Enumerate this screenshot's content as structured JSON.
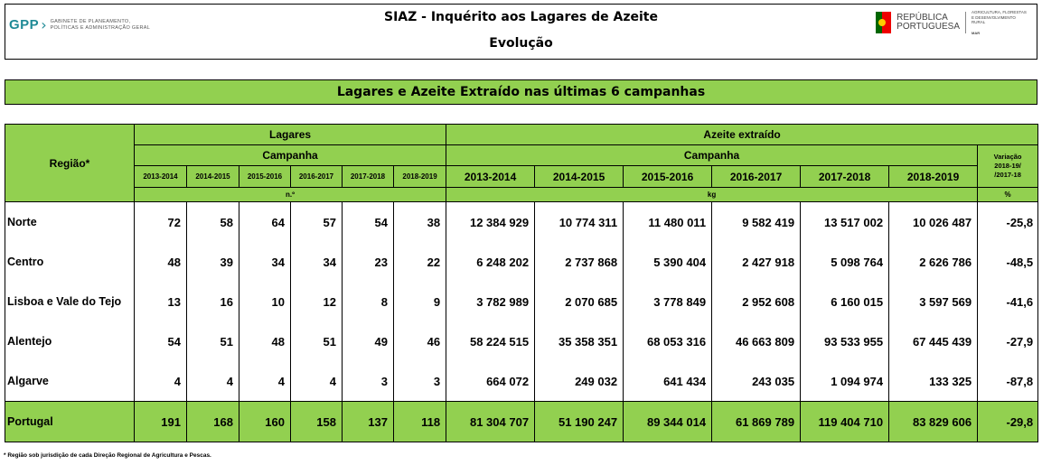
{
  "header": {
    "logo_left_mark": "GPP",
    "logo_left_text_1": "GABINETE DE PLANEAMENTO,",
    "logo_left_text_2": "POLÍTICAS E ADMINISTRAÇÃO GERAL",
    "title": "SIAZ - Inquérito aos Lagares de Azeite",
    "subtitle": "Evolução",
    "logo_right_text_1": "REPÚBLICA",
    "logo_right_text_2": "PORTUGUESA",
    "logo_right_min_1": "AGRICULTURA, FLORESTAS",
    "logo_right_min_2": "E DESENVOLVIMENTO RURAL",
    "logo_right_min_3": "MAR"
  },
  "banner": "Lagares e Azeite Extraído nas últimas 6 campanhas",
  "table": {
    "region_header": "Região*",
    "lagares_header": "Lagares",
    "azeite_header": "Azeite extraído",
    "campanha_label": "Campanha",
    "variacao_header_1": "Variação",
    "variacao_header_2": "2018-19/",
    "variacao_header_3": "/2017-18",
    "years": [
      "2013-2014",
      "2014-2015",
      "2015-2016",
      "2016-2017",
      "2017-2018",
      "2018-2019"
    ],
    "unit_lagares": "n.º",
    "unit_azeite": "kg",
    "unit_variacao": "%",
    "rows": [
      {
        "region": "Norte",
        "lagares": [
          "72",
          "58",
          "64",
          "57",
          "54",
          "38"
        ],
        "azeite": [
          "12 384 929",
          "10 774 311",
          "11 480 011",
          "9 582 419",
          "13 517 002",
          "10 026 487"
        ],
        "variacao": "-25,8"
      },
      {
        "region": "Centro",
        "lagares": [
          "48",
          "39",
          "34",
          "34",
          "23",
          "22"
        ],
        "azeite": [
          "6 248 202",
          "2 737 868",
          "5 390 404",
          "2 427 918",
          "5 098 764",
          "2 626 786"
        ],
        "variacao": "-48,5"
      },
      {
        "region": "Lisboa e Vale do Tejo",
        "lagares": [
          "13",
          "16",
          "10",
          "12",
          "8",
          "9"
        ],
        "azeite": [
          "3 782 989",
          "2 070 685",
          "3 778 849",
          "2 952 608",
          "6 160 015",
          "3 597 569"
        ],
        "variacao": "-41,6"
      },
      {
        "region": "Alentejo",
        "lagares": [
          "54",
          "51",
          "48",
          "51",
          "49",
          "46"
        ],
        "azeite": [
          "58 224 515",
          "35 358 351",
          "68 053 316",
          "46 663 809",
          "93 533 955",
          "67 445 439"
        ],
        "variacao": "-27,9"
      },
      {
        "region": "Algarve",
        "lagares": [
          "4",
          "4",
          "4",
          "4",
          "3",
          "3"
        ],
        "azeite": [
          "664 072",
          "249 032",
          "641 434",
          "243 035",
          "1 094 974",
          "133 325"
        ],
        "variacao": "-87,8"
      }
    ],
    "total": {
      "region": "Portugal",
      "lagares": [
        "191",
        "168",
        "160",
        "158",
        "137",
        "118"
      ],
      "azeite": [
        "81 304 707",
        "51 190 247",
        "89 344 014",
        "61 869 789",
        "119 404 710",
        "83 829 606"
      ],
      "variacao": "-29,8"
    }
  },
  "footnote": "* Região sob jurisdição de cada Direção Regional de Agricultura e Pescas.",
  "colors": {
    "accent_green": "#92d050",
    "gpp_teal": "#1f8a96"
  }
}
